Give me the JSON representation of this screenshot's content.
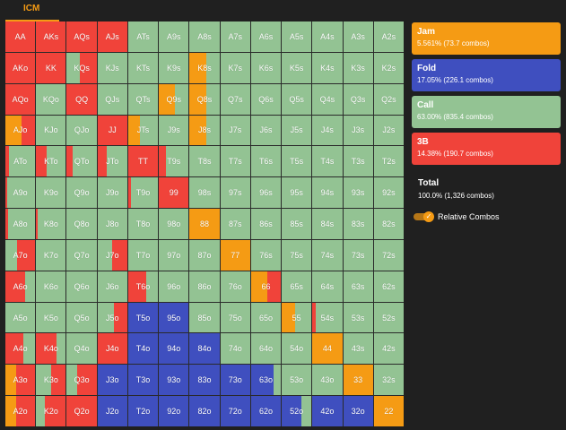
{
  "tab": {
    "label": "ICM"
  },
  "colors": {
    "jam": "#F59B14",
    "fold": "#3F4FBF",
    "call": "#93C393",
    "threebet": "#F0433A"
  },
  "legend": [
    {
      "key": "jam",
      "title": "Jam",
      "sub": "5.561% (73.7 combos)"
    },
    {
      "key": "fold",
      "title": "Fold",
      "sub": "17.05% (226.1 combos)"
    },
    {
      "key": "call",
      "title": "Call",
      "sub": "63.00% (835.4 combos)"
    },
    {
      "key": "threebet",
      "title": "3B",
      "sub": "14.38% (190.7 combos)"
    }
  ],
  "total": {
    "title": "Total",
    "sub": "100.0% (1,326 combos)"
  },
  "toggle": {
    "label": "Relative Combos",
    "on": true,
    "check_glyph": "✓"
  },
  "grid": [
    [
      "AA",
      "AKs",
      "AQs",
      "AJs",
      "ATs",
      "A9s",
      "A8s",
      "A7s",
      "A6s",
      "A5s",
      "A4s",
      "A3s",
      "A2s"
    ],
    [
      "AKo",
      "KK",
      "KQs",
      "KJs",
      "KTs",
      "K9s",
      "K8s",
      "K7s",
      "K6s",
      "K5s",
      "K4s",
      "K3s",
      "K2s"
    ],
    [
      "AQo",
      "KQo",
      "QQ",
      "QJs",
      "QTs",
      "Q9s",
      "Q8s",
      "Q7s",
      "Q6s",
      "Q5s",
      "Q4s",
      "Q3s",
      "Q2s"
    ],
    [
      "AJo",
      "KJo",
      "QJo",
      "JJ",
      "JTs",
      "J9s",
      "J8s",
      "J7s",
      "J6s",
      "J5s",
      "J4s",
      "J3s",
      "J2s"
    ],
    [
      "ATo",
      "KTo",
      "QTo",
      "JTo",
      "TT",
      "T9s",
      "T8s",
      "T7s",
      "T6s",
      "T5s",
      "T4s",
      "T3s",
      "T2s"
    ],
    [
      "A9o",
      "K9o",
      "Q9o",
      "J9o",
      "T9o",
      "99",
      "98s",
      "97s",
      "96s",
      "95s",
      "94s",
      "93s",
      "92s"
    ],
    [
      "A8o",
      "K8o",
      "Q8o",
      "J8o",
      "T8o",
      "98o",
      "88",
      "87s",
      "86s",
      "85s",
      "84s",
      "83s",
      "82s"
    ],
    [
      "A7o",
      "K7o",
      "Q7o",
      "J7o",
      "T7o",
      "97o",
      "87o",
      "77",
      "76s",
      "75s",
      "74s",
      "73s",
      "72s"
    ],
    [
      "A6o",
      "K6o",
      "Q6o",
      "J6o",
      "T6o",
      "96o",
      "86o",
      "76o",
      "66",
      "65s",
      "64s",
      "63s",
      "62s"
    ],
    [
      "A5o",
      "K5o",
      "Q5o",
      "J5o",
      "T5o",
      "95o",
      "85o",
      "75o",
      "65o",
      "55",
      "54s",
      "53s",
      "52s"
    ],
    [
      "A4o",
      "K4o",
      "Q4o",
      "J4o",
      "T4o",
      "94o",
      "84o",
      "74o",
      "64o",
      "54o",
      "44",
      "43s",
      "42s"
    ],
    [
      "A3o",
      "K3o",
      "Q3o",
      "J3o",
      "T3o",
      "93o",
      "83o",
      "73o",
      "63o",
      "53o",
      "43o",
      "33",
      "32s"
    ],
    [
      "A2o",
      "K2o",
      "Q2o",
      "J2o",
      "T2o",
      "92o",
      "82o",
      "72o",
      "62o",
      "52o",
      "42o",
      "32o",
      "22"
    ]
  ],
  "strategy": {
    "AA": [
      [
        "threebet",
        1
      ]
    ],
    "AKs": [
      [
        "threebet",
        1
      ]
    ],
    "AQs": [
      [
        "threebet",
        1
      ]
    ],
    "AJs": [
      [
        "threebet",
        1
      ]
    ],
    "AKo": [
      [
        "threebet",
        1
      ]
    ],
    "KK": [
      [
        "threebet",
        1
      ]
    ],
    "KQs": [
      [
        "call",
        0.45
      ],
      [
        "threebet",
        0.55
      ]
    ],
    "K8s": [
      [
        "jam",
        0.55
      ],
      [
        "call",
        0.45
      ]
    ],
    "AQo": [
      [
        "threebet",
        1
      ]
    ],
    "QQ": [
      [
        "threebet",
        1
      ]
    ],
    "Q9s": [
      [
        "jam",
        0.55
      ],
      [
        "call",
        0.45
      ]
    ],
    "Q8s": [
      [
        "jam",
        0.55
      ],
      [
        "call",
        0.45
      ]
    ],
    "AJo": [
      [
        "jam",
        0.55
      ],
      [
        "threebet",
        0.45
      ]
    ],
    "JJ": [
      [
        "threebet",
        1
      ]
    ],
    "JTs": [
      [
        "jam",
        0.4
      ],
      [
        "call",
        0.6
      ]
    ],
    "J8s": [
      [
        "jam",
        0.55
      ],
      [
        "call",
        0.45
      ]
    ],
    "KTo": [
      [
        "threebet",
        0.35
      ],
      [
        "call",
        0.65
      ]
    ],
    "QTo": [
      [
        "threebet",
        0.2
      ],
      [
        "call",
        0.8
      ]
    ],
    "JTo": [
      [
        "threebet",
        0.3
      ],
      [
        "call",
        0.7
      ]
    ],
    "TT": [
      [
        "threebet",
        1
      ]
    ],
    "T9s": [
      [
        "threebet",
        0.25
      ],
      [
        "call",
        0.75
      ]
    ],
    "ATo": [
      [
        "threebet",
        0.12
      ],
      [
        "call",
        0.88
      ]
    ],
    "99": [
      [
        "threebet",
        1
      ]
    ],
    "T9o": [
      [
        "threebet",
        0.08
      ],
      [
        "call",
        0.92
      ]
    ],
    "A9o": [
      [
        "threebet",
        0.05
      ],
      [
        "call",
        0.95
      ]
    ],
    "88": [
      [
        "jam",
        1
      ]
    ],
    "A8o": [
      [
        "threebet",
        0.1
      ],
      [
        "call",
        0.9
      ]
    ],
    "K8o": [
      [
        "threebet",
        0.05
      ],
      [
        "call",
        0.95
      ]
    ],
    "77": [
      [
        "jam",
        1
      ]
    ],
    "A7o": [
      [
        "call",
        0.4
      ],
      [
        "threebet",
        0.6
      ]
    ],
    "J7o": [
      [
        "call",
        0.5
      ],
      [
        "threebet",
        0.5
      ]
    ],
    "66": [
      [
        "jam",
        0.55
      ],
      [
        "threebet",
        0.45
      ]
    ],
    "A6o": [
      [
        "threebet",
        0.65
      ],
      [
        "call",
        0.35
      ]
    ],
    "T6o": [
      [
        "threebet",
        0.6
      ],
      [
        "call",
        0.4
      ]
    ],
    "55": [
      [
        "jam",
        0.45
      ],
      [
        "call",
        0.55
      ]
    ],
    "T5o": [
      [
        "fold",
        1
      ]
    ],
    "95o": [
      [
        "fold",
        1
      ]
    ],
    "J5o": [
      [
        "call",
        0.55
      ],
      [
        "threebet",
        0.45
      ]
    ],
    "54s": [
      [
        "threebet",
        0.1
      ],
      [
        "call",
        0.9
      ]
    ],
    "A4o": [
      [
        "threebet",
        0.6
      ],
      [
        "call",
        0.4
      ]
    ],
    "K4o": [
      [
        "threebet",
        0.7
      ],
      [
        "call",
        0.3
      ]
    ],
    "J4o": [
      [
        "threebet",
        1
      ]
    ],
    "T4o": [
      [
        "fold",
        1
      ]
    ],
    "94o": [
      [
        "fold",
        1
      ]
    ],
    "84o": [
      [
        "fold",
        1
      ]
    ],
    "44": [
      [
        "jam",
        1
      ]
    ],
    "A3o": [
      [
        "jam",
        0.35
      ],
      [
        "threebet",
        0.65
      ]
    ],
    "K3o": [
      [
        "call",
        0.5
      ],
      [
        "threebet",
        0.5
      ]
    ],
    "Q3o": [
      [
        "call",
        0.35
      ],
      [
        "threebet",
        0.65
      ]
    ],
    "J3o": [
      [
        "fold",
        1
      ]
    ],
    "T3o": [
      [
        "fold",
        1
      ]
    ],
    "93o": [
      [
        "fold",
        1
      ]
    ],
    "83o": [
      [
        "fold",
        1
      ]
    ],
    "73o": [
      [
        "fold",
        1
      ]
    ],
    "63o": [
      [
        "fold",
        0.75
      ],
      [
        "call",
        0.25
      ]
    ],
    "33": [
      [
        "jam",
        1
      ]
    ],
    "A2o": [
      [
        "jam",
        0.35
      ],
      [
        "threebet",
        0.65
      ]
    ],
    "K2o": [
      [
        "call",
        0.3
      ],
      [
        "threebet",
        0.7
      ]
    ],
    "Q2o": [
      [
        "threebet",
        1
      ]
    ],
    "J2o": [
      [
        "fold",
        1
      ]
    ],
    "T2o": [
      [
        "fold",
        1
      ]
    ],
    "92o": [
      [
        "fold",
        1
      ]
    ],
    "82o": [
      [
        "fold",
        1
      ]
    ],
    "72o": [
      [
        "fold",
        1
      ]
    ],
    "62o": [
      [
        "fold",
        1
      ]
    ],
    "52o": [
      [
        "fold",
        0.65
      ],
      [
        "call",
        0.35
      ]
    ],
    "42o": [
      [
        "fold",
        1
      ]
    ],
    "32o": [
      [
        "fold",
        1
      ]
    ],
    "22": [
      [
        "jam",
        1
      ]
    ]
  }
}
